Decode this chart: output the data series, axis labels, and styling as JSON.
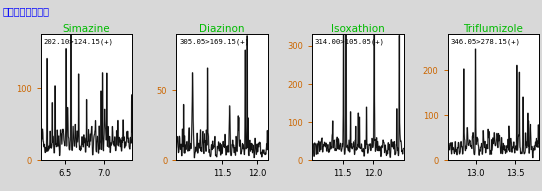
{
  "panels": [
    {
      "title": "Simazine",
      "annotation": "202.10>124.15(+)",
      "xlim": [
        6.2,
        7.35
      ],
      "ylim": [
        0,
        175
      ],
      "yticks": [
        0,
        100
      ],
      "xticks": [
        6.5,
        7.0
      ],
      "xticklabels": [
        "6.5",
        "7.0"
      ],
      "seed": 42,
      "n_points": 300,
      "noise_scale": 30,
      "base_level": 55,
      "spike_prob": 0.08,
      "spike_scale": 100
    },
    {
      "title": "Diazinon",
      "annotation": "305.05>169.15(+)",
      "xlim": [
        10.85,
        12.15
      ],
      "ylim": [
        0,
        90
      ],
      "yticks": [
        0,
        50
      ],
      "xticks": [
        11.5,
        12.0
      ],
      "xticklabels": [
        "11.5",
        "12.0"
      ],
      "seed": 17,
      "n_points": 300,
      "noise_scale": 12,
      "base_level": 15,
      "spike_prob": 0.08,
      "spike_scale": 55
    },
    {
      "title": "Isoxathion",
      "annotation": "314.00>105.05(+)",
      "xlim": [
        11.0,
        12.5
      ],
      "ylim": [
        0,
        330
      ],
      "yticks": [
        0,
        100,
        200,
        300
      ],
      "xticks": [
        11.5,
        12.0
      ],
      "xticklabels": [
        "11.5",
        "12.0"
      ],
      "seed": 23,
      "n_points": 300,
      "noise_scale": 35,
      "base_level": 75,
      "spike_prob": 0.08,
      "spike_scale": 220
    },
    {
      "title": "Triflumizole",
      "annotation": "346.05>278.15(+)",
      "xlim": [
        12.65,
        13.8
      ],
      "ylim": [
        0,
        280
      ],
      "yticks": [
        0,
        100,
        200
      ],
      "xticks": [
        13.0,
        13.5
      ],
      "xticklabels": [
        "13.0",
        "13.5"
      ],
      "seed": 77,
      "n_points": 300,
      "noise_scale": 30,
      "base_level": 70,
      "spike_prob": 0.08,
      "spike_scale": 170
    }
  ],
  "title_color": "#00bb00",
  "annotation_color": "#000000",
  "ytick_color": "#cc6600",
  "xtick_color": "#000000",
  "subtitle_text": "標準試料添加無し",
  "subtitle_color": "#0000ff",
  "background_color": "#ffffff",
  "line_color_dark": "#111111",
  "line_color_light": "#999999",
  "fig_bg": "#d8d8d8"
}
